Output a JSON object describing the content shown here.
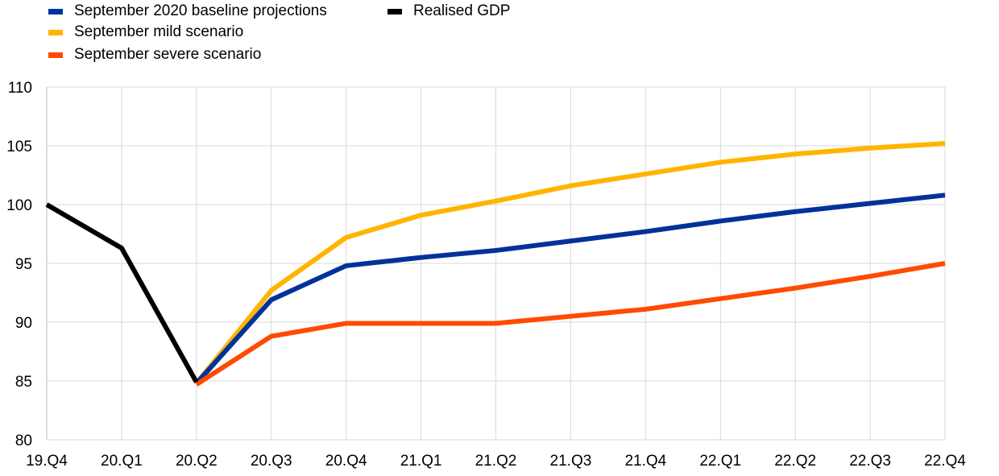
{
  "chart_data": {
    "type": "line",
    "categories": [
      "19.Q4",
      "20.Q1",
      "20.Q2",
      "20.Q3",
      "20.Q4",
      "21.Q1",
      "21.Q2",
      "21.Q3",
      "21.Q4",
      "22.Q1",
      "22.Q2",
      "22.Q3",
      "22.Q4"
    ],
    "ylim": [
      80,
      110
    ],
    "yticks": [
      80,
      85,
      90,
      95,
      100,
      105,
      110
    ],
    "grid": true,
    "legend_position": "top-left",
    "series": [
      {
        "name": "September 2020 baseline projections",
        "color": "#003299",
        "values": [
          null,
          null,
          84.8,
          91.9,
          94.8,
          95.5,
          96.1,
          96.9,
          97.7,
          98.6,
          99.4,
          100.1,
          100.8
        ]
      },
      {
        "name": "Realised GDP",
        "color": "#000000",
        "values": [
          100.0,
          96.3,
          84.9,
          null,
          null,
          null,
          null,
          null,
          null,
          null,
          null,
          null,
          null
        ]
      },
      {
        "name": "September mild scenario",
        "color": "#FFB400",
        "values": [
          null,
          null,
          84.8,
          92.7,
          97.2,
          99.1,
          100.3,
          101.6,
          102.6,
          103.6,
          104.3,
          104.8,
          105.2
        ]
      },
      {
        "name": "September severe scenario",
        "color": "#FF4B00",
        "values": [
          null,
          null,
          84.7,
          88.8,
          89.9,
          89.9,
          89.9,
          90.5,
          91.1,
          92.0,
          92.9,
          93.9,
          95.0
        ]
      }
    ]
  }
}
